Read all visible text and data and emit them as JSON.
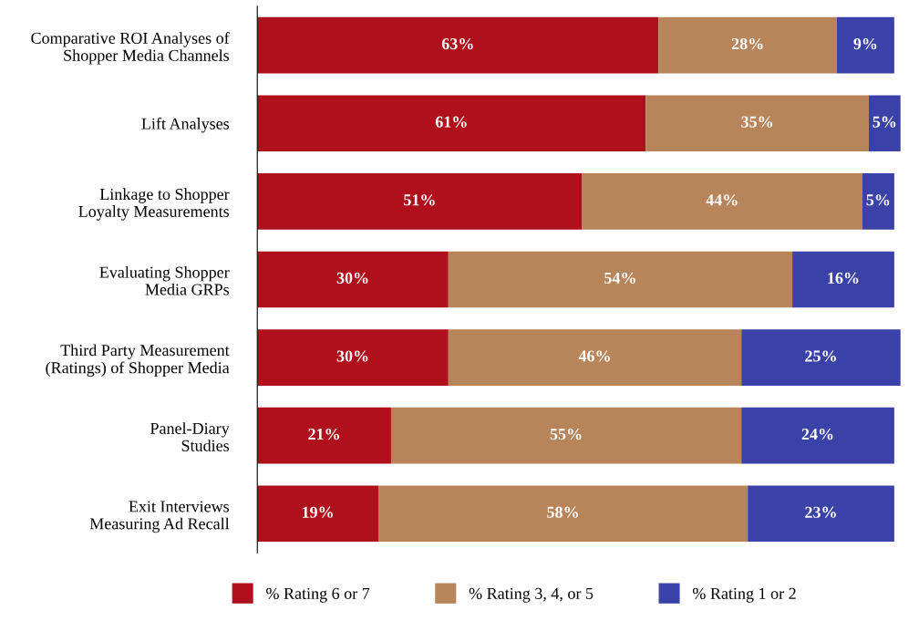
{
  "chart_data": {
    "type": "bar",
    "orientation": "horizontal",
    "stacked": true,
    "grid": false,
    "legend": "bottom",
    "categories": [
      "Comparative ROI Analyses of\nShopper Media Channels",
      "Lift Analyses",
      "Linkage to Shopper\nLoyalty Measurements",
      "Evaluating Shopper\nMedia GRPs",
      "Third Party Measurement\n(Ratings) of Shopper Media",
      "Panel-Diary\nStudies",
      "Exit Interviews\nMeasuring Ad Recall"
    ],
    "series": [
      {
        "name": "% Rating 6 or 7",
        "color": "#b0101c",
        "values": [
          63,
          61,
          51,
          30,
          30,
          21,
          19
        ],
        "value_labels": [
          "63%",
          "61%",
          "51%",
          "30%",
          "30%",
          "21%",
          "19%"
        ]
      },
      {
        "name": "% Rating 3, 4, or 5",
        "color": "#b8845a",
        "values": [
          28,
          35,
          44,
          54,
          46,
          55,
          58
        ],
        "value_labels": [
          "28%",
          "35%",
          "44%",
          "54%",
          "46%",
          "55%",
          "58%"
        ]
      },
      {
        "name": "% Rating 1 or 2",
        "color": "#3a42a8",
        "values": [
          9,
          5,
          5,
          16,
          25,
          24,
          23
        ],
        "value_labels": [
          "9%",
          "5%",
          "5%",
          "16%",
          "25%",
          "24%",
          "23%"
        ]
      }
    ]
  }
}
